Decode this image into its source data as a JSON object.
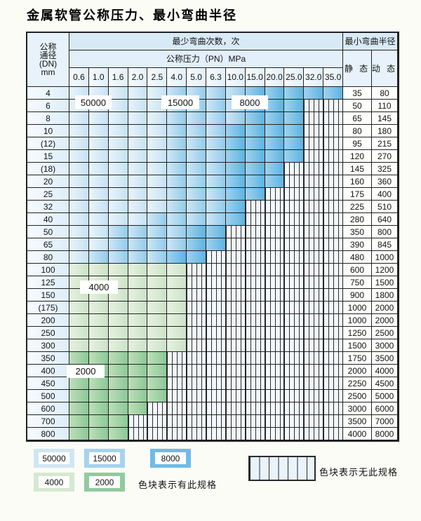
{
  "title": "金属软管公称压力、最小弯曲半径",
  "table": {
    "header": {
      "dn_lines": [
        "公称",
        "通径",
        "(DN)",
        "mm"
      ],
      "bend_cycles_label": "最少弯曲次数，次",
      "pressure_label": "公称压力（PN）MPa",
      "radius_label": "最小弯曲半径",
      "static_label": "静 态",
      "dynamic_label": "动 态",
      "pressure_cols": [
        "0.6",
        "1.0",
        "1.6",
        "2.0",
        "2.5",
        "4.0",
        "5.0",
        "6.3",
        "10.0",
        "15.0",
        "20.0",
        "25.0",
        "32.0",
        "35.0"
      ]
    },
    "band_key": {
      "A": "50000",
      "B": "15000",
      "C": "8000",
      "D": "4000",
      "E": "2000",
      ".": "无此规格"
    },
    "region_labels": [
      "50000",
      "15000",
      "8000",
      "4000",
      "2000"
    ],
    "rows": [
      {
        "dn": "4",
        "bands": "AAAAABBBBCCCCC",
        "static": "35",
        "dynamic": "80"
      },
      {
        "dn": "6",
        "bands": "AAAAABBBBCCC..",
        "static": "50",
        "dynamic": "110"
      },
      {
        "dn": "8",
        "bands": "AAAAABBBBCCC..",
        "static": "65",
        "dynamic": "145"
      },
      {
        "dn": "10",
        "bands": "AAAAABBBCCCC..",
        "static": "80",
        "dynamic": "180"
      },
      {
        "dn": "(12)",
        "bands": "AAAAABBBCCCC..",
        "static": "95",
        "dynamic": "215"
      },
      {
        "dn": "15",
        "bands": "AAAAABBBCCCC..",
        "static": "120",
        "dynamic": "270"
      },
      {
        "dn": "(18)",
        "bands": "AAAAABBBCCC...",
        "static": "145",
        "dynamic": "325"
      },
      {
        "dn": "20",
        "bands": "AAAAABBBCCC...",
        "static": "160",
        "dynamic": "360"
      },
      {
        "dn": "25",
        "bands": "AAAAABBBCC....",
        "static": "175",
        "dynamic": "400"
      },
      {
        "dn": "32",
        "bands": "AAAAABBBC.....",
        "static": "225",
        "dynamic": "510"
      },
      {
        "dn": "40",
        "bands": "AAAABBBBC.....",
        "static": "280",
        "dynamic": "640"
      },
      {
        "dn": "50",
        "bands": "AABBBBCC......",
        "static": "350",
        "dynamic": "800"
      },
      {
        "dn": "65",
        "bands": "AABBBBCC......",
        "static": "390",
        "dynamic": "845"
      },
      {
        "dn": "80",
        "bands": "ABBBBCC.......",
        "static": "480",
        "dynamic": "1000"
      },
      {
        "dn": "100",
        "bands": "DDDDDD........",
        "static": "600",
        "dynamic": "1200"
      },
      {
        "dn": "125",
        "bands": "DDDDDD........",
        "static": "750",
        "dynamic": "1500"
      },
      {
        "dn": "150",
        "bands": "DDDDDD........",
        "static": "900",
        "dynamic": "1800"
      },
      {
        "dn": "(175)",
        "bands": "DDDDDD........",
        "static": "1000",
        "dynamic": "2000"
      },
      {
        "dn": "200",
        "bands": "DDDDDD........",
        "static": "1000",
        "dynamic": "2000"
      },
      {
        "dn": "250",
        "bands": "DDDDDD........",
        "static": "1250",
        "dynamic": "2500"
      },
      {
        "dn": "300",
        "bands": "DDDDDD........",
        "static": "1500",
        "dynamic": "3000"
      },
      {
        "dn": "350",
        "bands": "EEEEE.........",
        "static": "1750",
        "dynamic": "3500"
      },
      {
        "dn": "400",
        "bands": "EEEEE.........",
        "static": "2000",
        "dynamic": "4000"
      },
      {
        "dn": "450",
        "bands": "EEEEE.........",
        "static": "2250",
        "dynamic": "4500"
      },
      {
        "dn": "500",
        "bands": "EEEEE.........",
        "static": "2500",
        "dynamic": "5000"
      },
      {
        "dn": "600",
        "bands": "EEEE..........",
        "static": "3000",
        "dynamic": "6000"
      },
      {
        "dn": "700",
        "bands": "EEE...........",
        "static": "3500",
        "dynamic": "7000"
      },
      {
        "dn": "800",
        "bands": "EEE...........",
        "static": "4000",
        "dynamic": "8000"
      }
    ]
  },
  "legend": {
    "items": [
      {
        "value": "50000",
        "color": "#cfe6f5"
      },
      {
        "value": "15000",
        "color": "#a6d3ef"
      },
      {
        "value": "8000",
        "color": "#6fbce6"
      },
      {
        "value": "4000",
        "color": "#d5e9d0"
      },
      {
        "value": "2000",
        "color": "#90cb9e"
      }
    ],
    "present_note": "色块表示有此规格",
    "absent_note": "色块表示无此规格"
  },
  "colors": {
    "band_gradients": {
      "50000": [
        "#e9f4fb",
        "#c6e2f3"
      ],
      "15000": [
        "#cde7f6",
        "#94cbea"
      ],
      "8000": [
        "#a0d2ee",
        "#5db4e2"
      ],
      "4000": [
        "#e7f1e0",
        "#cbe3c8"
      ],
      "2000": [
        "#bedfba",
        "#8bc897"
      ]
    },
    "stripe_background": "#f2f8fc",
    "grid_line": "#222222",
    "page_background": "#fbfcf6"
  }
}
